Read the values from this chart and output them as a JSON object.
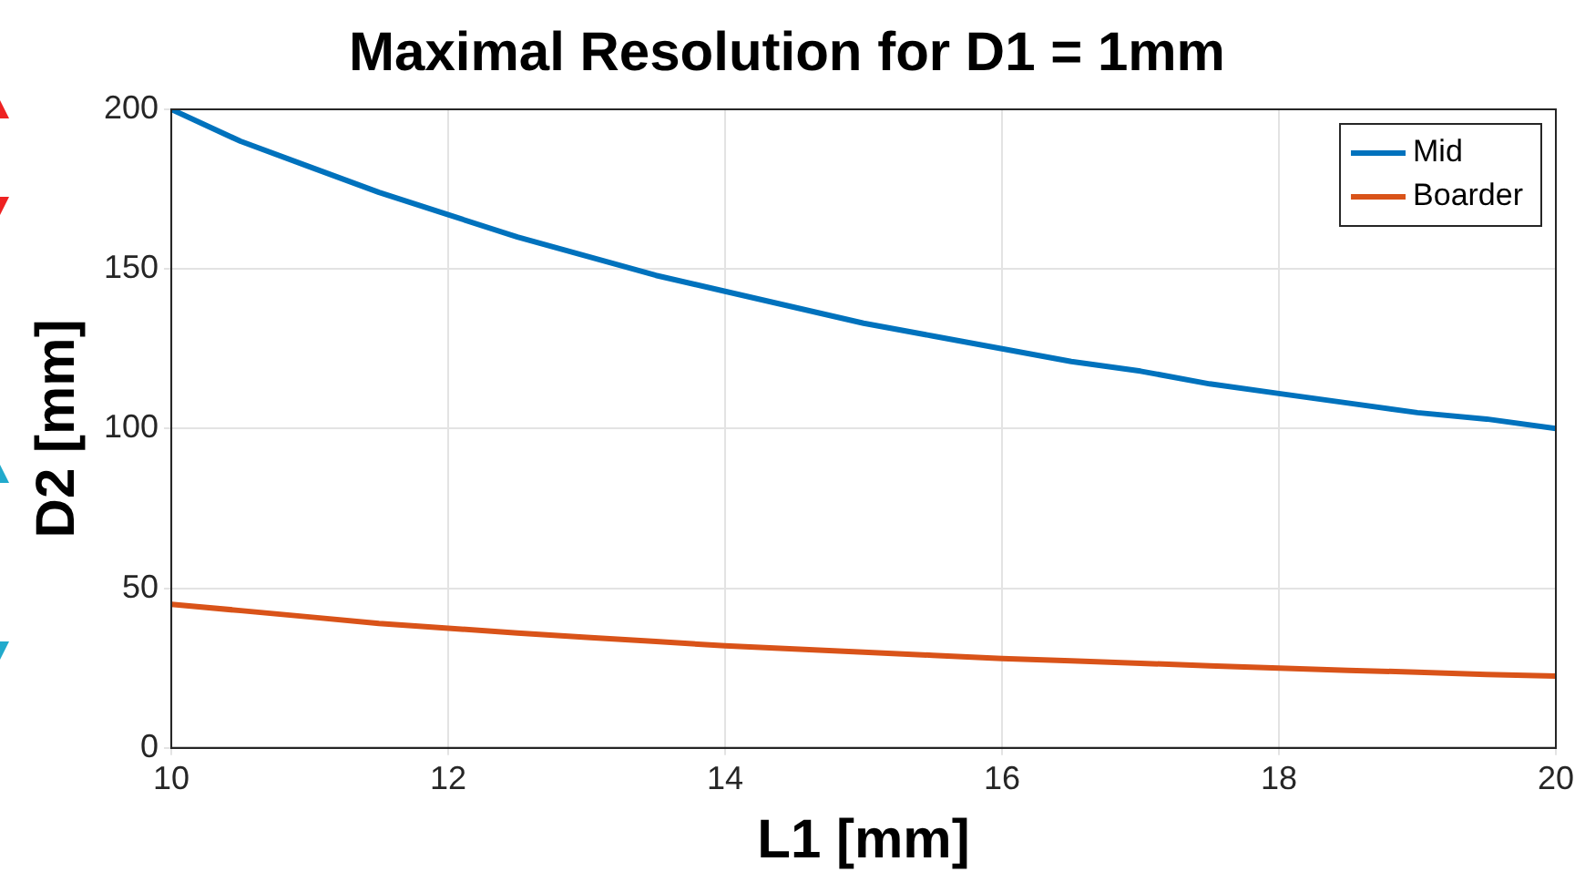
{
  "chart_data": {
    "type": "line",
    "title": "Maximal Resolution for D1 = 1mm",
    "xlabel": "L1 [mm]",
    "ylabel": "D2 [mm]",
    "x": [
      10,
      10.5,
      11,
      11.5,
      12,
      12.5,
      13,
      13.5,
      14,
      14.5,
      15,
      15.5,
      16,
      16.5,
      17,
      17.5,
      18,
      18.5,
      19,
      19.5,
      20
    ],
    "series": [
      {
        "name": "Mid",
        "color": "#0072bd",
        "values": [
          200,
          190,
          182,
          174,
          167,
          160,
          154,
          148,
          143,
          138,
          133,
          129,
          125,
          121,
          118,
          114,
          111,
          108,
          105,
          103,
          100
        ]
      },
      {
        "name": "Boarder",
        "color": "#d95319",
        "values": [
          45,
          43,
          41,
          39,
          37.5,
          36,
          34.6,
          33.3,
          32,
          31,
          30,
          29,
          28,
          27.3,
          26.5,
          25.7,
          25,
          24.3,
          23.7,
          23,
          22.5
        ]
      }
    ],
    "xlim": [
      10,
      20
    ],
    "xticks": [
      10,
      12,
      14,
      16,
      18,
      20
    ],
    "ylim": [
      0,
      200
    ],
    "yticks": [
      0,
      50,
      100,
      150,
      200
    ],
    "grid": true,
    "legend": "top right",
    "marker": "none",
    "line_style": "solid"
  }
}
